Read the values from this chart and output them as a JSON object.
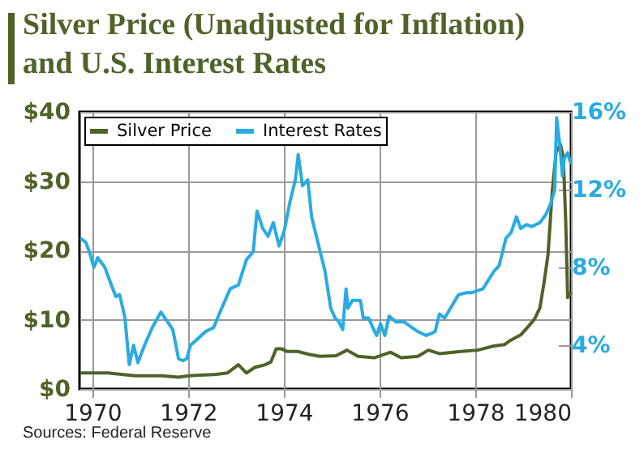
{
  "chart_data": {
    "type": "line",
    "title": "Silver Price (Unadjusted for Inflation) and U.S. Interest Rates",
    "annotations": [
      "Sources: Federal Reserve"
    ],
    "xlim": [
      1969.73,
      1980
    ],
    "xticks": [
      1970,
      1972,
      1974,
      1976,
      1978,
      1980
    ],
    "ylim": [
      0,
      40
    ],
    "yticks": [
      {
        "value": 0,
        "label": "$0"
      },
      {
        "value": 10,
        "label": "$10"
      },
      {
        "value": 20,
        "label": "$20"
      },
      {
        "value": 30,
        "label": "$30"
      },
      {
        "value": 40,
        "label": "$40"
      }
    ],
    "y2lim": [
      1.75,
      16
    ],
    "y2ticks": [
      {
        "value": 4,
        "label": "4%"
      },
      {
        "value": 8,
        "label": "8%"
      },
      {
        "value": 12,
        "label": "12%"
      },
      {
        "value": 16,
        "label": "16%"
      }
    ],
    "grid": true,
    "legend": "top left",
    "line_style": "solid",
    "series": [
      {
        "name": "Silver Price",
        "color": "#4f6228",
        "x": [
          1969.75,
          1970.32,
          1970.89,
          1971.45,
          1971.8,
          1972.02,
          1972.59,
          1972.82,
          1973.05,
          1973.22,
          1973.39,
          1973.61,
          1973.73,
          1973.84,
          1973.95,
          1974.07,
          1974.3,
          1974.52,
          1974.75,
          1975.09,
          1975.32,
          1975.55,
          1975.89,
          1976.23,
          1976.45,
          1976.8,
          1977.02,
          1977.25,
          1977.7,
          1978.05,
          1978.39,
          1978.61,
          1978.73,
          1978.95,
          1979.13,
          1979.24,
          1979.35,
          1979.44,
          1979.52,
          1979.61,
          1979.69,
          1979.78,
          1979.84,
          1979.89,
          1979.93,
          1980.0
        ],
        "values": [
          2.3,
          2.3,
          1.9,
          1.9,
          1.7,
          1.9,
          2.1,
          2.3,
          3.5,
          2.3,
          3.1,
          3.5,
          3.9,
          5.8,
          5.8,
          5.4,
          5.4,
          5.0,
          4.7,
          4.8,
          5.6,
          4.7,
          4.5,
          5.3,
          4.5,
          4.7,
          5.6,
          5.1,
          5.4,
          5.6,
          6.2,
          6.4,
          7.0,
          7.8,
          9.2,
          10.1,
          11.7,
          15.5,
          19.4,
          28.7,
          34.2,
          35.3,
          33.4,
          24.1,
          13.2,
          14.0
        ]
      },
      {
        "name": "Interest Rates",
        "color": "#29abe2",
        "axis": "y2",
        "x": [
          1969.75,
          1969.86,
          1969.95,
          1970.03,
          1970.11,
          1970.26,
          1970.38,
          1970.49,
          1970.57,
          1970.68,
          1970.77,
          1970.86,
          1970.95,
          1971.09,
          1971.25,
          1971.43,
          1971.57,
          1971.68,
          1971.8,
          1971.89,
          1971.97,
          1972.05,
          1972.19,
          1972.36,
          1972.53,
          1972.7,
          1972.88,
          1973.05,
          1973.22,
          1973.36,
          1973.44,
          1973.56,
          1973.67,
          1973.78,
          1973.9,
          1974.01,
          1974.13,
          1974.24,
          1974.3,
          1974.39,
          1974.5,
          1974.58,
          1974.75,
          1974.86,
          1974.98,
          1975.07,
          1975.15,
          1975.23,
          1975.3,
          1975.34,
          1975.43,
          1975.6,
          1975.66,
          1975.77,
          1975.86,
          1975.94,
          1976.02,
          1976.11,
          1976.2,
          1976.34,
          1976.51,
          1976.68,
          1976.8,
          1976.97,
          1977.08,
          1977.16,
          1977.25,
          1977.36,
          1977.48,
          1977.65,
          1977.82,
          1977.93,
          1978.16,
          1978.39,
          1978.5,
          1978.64,
          1978.75,
          1978.86,
          1978.95,
          1979.07,
          1979.18,
          1979.35,
          1979.47,
          1979.58,
          1979.66,
          1979.7,
          1979.77,
          1979.82,
          1979.86,
          1979.93,
          1980.0
        ],
        "values": [
          9.5,
          9.3,
          8.7,
          8.0,
          8.5,
          8.0,
          7.2,
          6.5,
          6.6,
          5.4,
          3.0,
          4.0,
          3.1,
          4.0,
          4.9,
          5.7,
          5.2,
          4.8,
          3.3,
          3.2,
          3.3,
          4.0,
          4.3,
          4.7,
          4.9,
          5.9,
          6.9,
          7.1,
          8.4,
          8.8,
          10.9,
          10.0,
          9.6,
          10.3,
          9.1,
          9.9,
          11.4,
          12.5,
          13.8,
          12.2,
          12.5,
          10.6,
          8.9,
          7.8,
          5.9,
          5.4,
          5.2,
          4.8,
          6.9,
          5.9,
          6.3,
          6.3,
          5.4,
          5.4,
          4.9,
          4.5,
          5.1,
          4.5,
          5.5,
          5.2,
          5.2,
          4.9,
          4.7,
          4.5,
          4.6,
          4.7,
          5.6,
          5.4,
          5.9,
          6.6,
          6.7,
          6.7,
          6.9,
          7.8,
          8.1,
          9.5,
          9.8,
          10.6,
          10.0,
          10.2,
          10.1,
          10.3,
          10.7,
          11.3,
          12.0,
          15.7,
          14.2,
          12.7,
          13.6,
          13.9,
          13.3
        ]
      }
    ]
  }
}
